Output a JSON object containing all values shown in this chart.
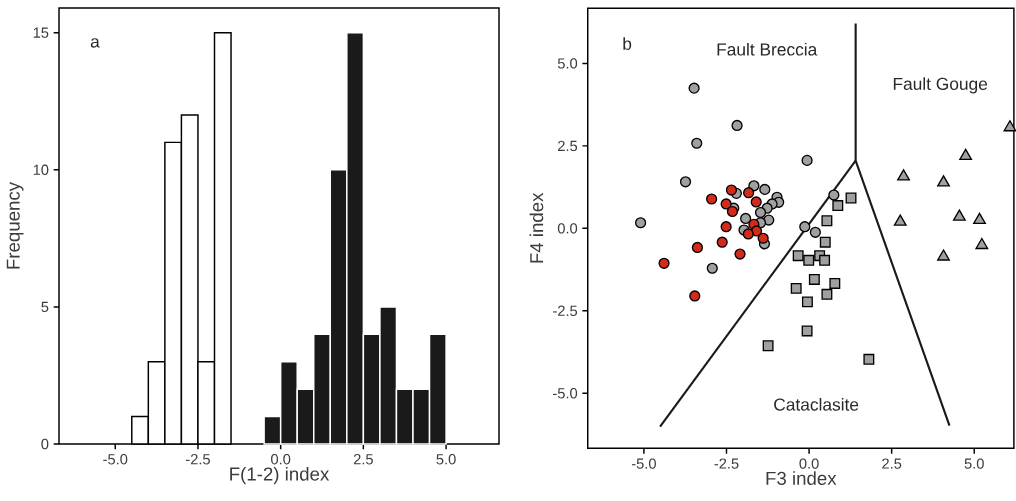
{
  "chart_data": [
    {
      "type": "histogram",
      "xlabel": "F(1-2) index",
      "ylabel": "Frequency",
      "annotations": [
        "a"
      ],
      "bins": [
        -4.5,
        -4.0,
        -3.5,
        -3.0,
        -2.5,
        -2.0,
        -1.5,
        -1.0,
        -0.5,
        0.0,
        0.5,
        1.0,
        1.5,
        2.0,
        2.5,
        3.0,
        3.5,
        4.0,
        4.5,
        5.0
      ],
      "values": [
        1,
        3,
        11,
        12,
        3,
        15,
        0,
        0,
        1,
        3,
        2,
        4,
        10,
        15,
        4,
        5,
        2,
        2,
        4
      ],
      "colors": [
        "#ffffff",
        "#ffffff",
        "#ffffff",
        "#ffffff",
        "#ffffff",
        "#ffffff",
        "#ffffff",
        "#ffffff",
        "#1a1a1a",
        "#1a1a1a",
        "#1a1a1a",
        "#1a1a1a",
        "#1a1a1a",
        "#1a1a1a",
        "#1a1a1a",
        "#1a1a1a",
        "#1a1a1a",
        "#1a1a1a",
        "#1a1a1a"
      ],
      "xlim": [
        -6.7,
        6.6
      ],
      "ylim": [
        0,
        15.9
      ],
      "xticks": [
        {
          "value": -5,
          "label": "-5.0"
        },
        {
          "value": -2.5,
          "label": "-2.5"
        },
        {
          "value": 0,
          "label": "0.0"
        },
        {
          "value": 2.5,
          "label": "2.5"
        },
        {
          "value": 5,
          "label": "5.0"
        }
      ],
      "yticks": [
        0,
        5,
        10,
        15
      ],
      "grid": false
    },
    {
      "type": "scatter",
      "xlabel": "F3 index",
      "ylabel": "F4 index",
      "annotations": [
        "b",
        "Fault Breccia",
        "Fault Gouge",
        "Cataclasite"
      ],
      "xlim": [
        -6.7,
        6.2
      ],
      "ylim": [
        -6.67,
        6.67
      ],
      "xticks": [
        {
          "value": -5,
          "label": "-5.0"
        },
        {
          "value": -2.5,
          "label": "-2.5"
        },
        {
          "value": 0,
          "label": "0.0"
        },
        {
          "value": 2.5,
          "label": "2.5"
        },
        {
          "value": 5,
          "label": "5.0"
        }
      ],
      "yticks": [
        {
          "value": -5,
          "label": "-5.0"
        },
        {
          "value": -2.5,
          "label": "-2.5"
        },
        {
          "value": 0,
          "label": "0.0"
        },
        {
          "value": 2.5,
          "label": "2.5"
        },
        {
          "value": 5,
          "label": "5.0"
        }
      ],
      "grid": false,
      "series": [
        {
          "type": "line",
          "color": "#1a1a1a",
          "marker": "none",
          "line_style": "solid",
          "x": [
            1.41,
            1.41,
            4.25
          ],
          "values": [
            6.21,
            2.05,
            -5.98
          ]
        },
        {
          "type": "line",
          "color": "#1a1a1a",
          "marker": "none",
          "line_style": "solid",
          "x": [
            1.41,
            -4.51
          ],
          "values": [
            2.05,
            -6.01
          ]
        },
        {
          "type": "scatter",
          "color": "#a0a0a0",
          "marker": "circle",
          "x": [
            -3.48,
            -2.18,
            -3.4,
            -0.06,
            -3.74,
            -5.1,
            -2.93,
            0.75,
            -0.13,
            0.19,
            -1.67,
            -1.34,
            -2.2,
            -0.97,
            -0.92,
            -1.12,
            -1.27,
            -1.47,
            -2.28,
            -1.92,
            -1.22,
            -1.47,
            -1.97,
            -1.35
          ],
          "values": [
            4.25,
            3.12,
            2.58,
            2.06,
            1.41,
            0.17,
            -1.21,
            1.01,
            0.05,
            -0.12,
            1.29,
            1.18,
            1.06,
            0.94,
            0.79,
            0.74,
            0.61,
            0.48,
            0.61,
            0.3,
            0.25,
            0.17,
            -0.05,
            -0.47
          ]
        },
        {
          "type": "scatter",
          "color": "#d42a1a",
          "marker": "circle",
          "x": [
            -2.35,
            -1.83,
            -2.95,
            -1.6,
            -2.51,
            -2.32,
            -2.51,
            -1.67,
            -1.59,
            -1.84,
            -1.39,
            -2.63,
            -3.38,
            -2.09,
            -4.39,
            -3.46
          ],
          "values": [
            1.16,
            1.08,
            0.89,
            0.8,
            0.74,
            0.51,
            0.05,
            0.12,
            -0.08,
            -0.17,
            -0.3,
            -0.42,
            -0.58,
            -0.78,
            -1.06,
            -2.05
          ]
        },
        {
          "type": "scatter",
          "color": "#a0a0a0",
          "marker": "square",
          "x": [
            1.27,
            0.87,
            0.54,
            0.49,
            -0.33,
            -0.01,
            0.32,
            0.47,
            0.16,
            0.78,
            -0.39,
            0.54,
            -0.05,
            -0.06,
            -1.24,
            1.81
          ],
          "values": [
            0.92,
            0.69,
            0.23,
            -0.42,
            -0.83,
            -0.97,
            -0.83,
            -0.97,
            -1.55,
            -1.67,
            -1.82,
            -2.0,
            -2.23,
            -3.11,
            -3.56,
            -3.97
          ]
        },
        {
          "type": "scatter",
          "color": "#a0a0a0",
          "marker": "triangle",
          "x": [
            6.08,
            4.74,
            2.86,
            4.07,
            2.76,
            4.55,
            5.16,
            5.23,
            4.07
          ],
          "values": [
            3.06,
            2.19,
            1.57,
            1.39,
            0.2,
            0.35,
            0.25,
            -0.51,
            -0.86
          ]
        }
      ]
    }
  ]
}
